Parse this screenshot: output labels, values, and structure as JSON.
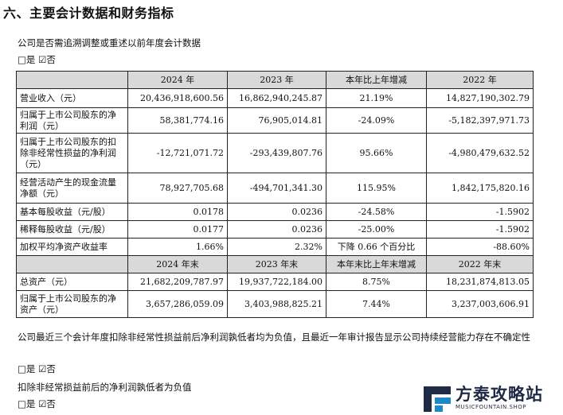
{
  "section_title": "六、主要会计数据和财务指标",
  "restate_question": "公司是否需追溯调整或重述以前年度会计数据",
  "restate_check": "□是 ☑否",
  "table": {
    "header1": [
      "",
      "2024 年",
      "2023 年",
      "本年比上年增减",
      "2022 年"
    ],
    "rows1": [
      [
        "营业收入（元）",
        "20,436,918,600.56",
        "16,862,940,245.87",
        "21.19%",
        "14,827,190,302.79"
      ],
      [
        "归属于上市公司股东的净利润（元）",
        "58,381,774.16",
        "76,905,014.81",
        "-24.09%",
        "-5,182,397,971.73"
      ],
      [
        "归属于上市公司股东的扣除非经常性损益的净利润（元）",
        "-12,721,071.72",
        "-293,439,807.76",
        "95.66%",
        "-4,980,479,632.52"
      ],
      [
        "经营活动产生的现金流量净额（元）",
        "78,927,705.68",
        "-494,701,341.30",
        "115.95%",
        "1,842,175,820.16"
      ],
      [
        "基本每股收益（元/股）",
        "0.0178",
        "0.0236",
        "-24.58%",
        "-1.5902"
      ],
      [
        "稀释每股收益（元/股）",
        "0.0177",
        "0.0236",
        "-25.00%",
        "-1.5902"
      ],
      [
        "加权平均净资产收益率",
        "1.66%",
        "2.32%",
        "下降 0.66 个百分比",
        "-88.60%"
      ]
    ],
    "header2": [
      "",
      "2024 年末",
      "2023 年末",
      "本年末比上年末增减",
      "2022 年末"
    ],
    "rows2": [
      [
        "总资产（元）",
        "21,682,209,787.97",
        "19,937,722,184.00",
        "8.75%",
        "18,231,874,813.05"
      ],
      [
        "归属于上市公司股东的净资产（元）",
        "3,657,286,059.09",
        "3,403,988,825.21",
        "7.44%",
        "3,237,003,606.91"
      ]
    ]
  },
  "going_concern_text": "公司最近三个会计年度扣除非经常性损益前后净利润孰低者均为负值，且最近一年审计报告显示公司持续经营能力存在不确定性",
  "going_concern_check": "□是 ☑否",
  "net_profit_text": "扣除非经常损益前后的净利润孰低者为负值",
  "net_profit_check": "□是 ☑否",
  "watermark": {
    "brand": "方泰攻略站",
    "sub": "MUSICFOUNTAIN.SHOP",
    "colors": {
      "dark": "#1f2a44",
      "accent": "#1e88c8"
    }
  }
}
